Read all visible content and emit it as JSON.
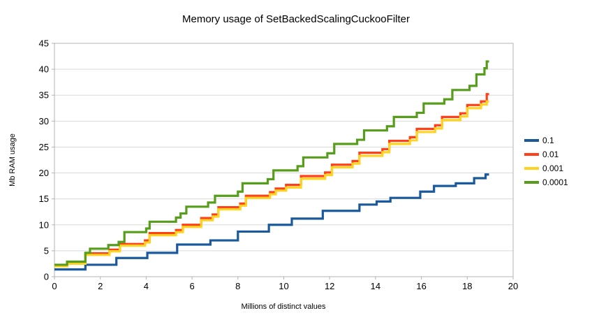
{
  "chart_data": {
    "type": "line",
    "step_lines": true,
    "title": "Memory usage of SetBackedScalingCuckooFilter",
    "xlabel": "Millions of distinct values",
    "ylabel": "Mb RAM usage",
    "xlim": [
      0,
      20
    ],
    "ylim": [
      0,
      45
    ],
    "xticks": [
      0,
      2,
      4,
      6,
      8,
      10,
      12,
      14,
      16,
      18,
      20
    ],
    "yticks": [
      0,
      5,
      10,
      15,
      20,
      25,
      30,
      35,
      40,
      45
    ],
    "grid": "horizontal",
    "legend_position": "right",
    "background_color": "#ffffff",
    "grid_color": "#d9d9d9",
    "axis_color": "#b3b3b3",
    "x_end": 18.95,
    "series": [
      {
        "name": "0.1",
        "color": "#1a5a9c",
        "steps": [
          [
            0,
            1.4
          ],
          [
            1.35,
            2.3
          ],
          [
            2.7,
            3.6
          ],
          [
            4.05,
            4.6
          ],
          [
            5.35,
            6.2
          ],
          [
            6.8,
            7.0
          ],
          [
            8.0,
            8.7
          ],
          [
            9.35,
            10.0
          ],
          [
            10.35,
            11.2
          ],
          [
            11.7,
            12.7
          ],
          [
            13.3,
            13.9
          ],
          [
            14.05,
            14.5
          ],
          [
            14.65,
            15.2
          ],
          [
            15.95,
            16.4
          ],
          [
            16.55,
            17.5
          ],
          [
            17.5,
            18.0
          ],
          [
            18.3,
            19.0
          ],
          [
            18.8,
            19.7
          ]
        ]
      },
      {
        "name": "0.01",
        "color": "#ff4019",
        "steps": [
          [
            0,
            2.2
          ],
          [
            0.55,
            2.7
          ],
          [
            1.35,
            4.5
          ],
          [
            2.4,
            5.2
          ],
          [
            2.85,
            6.3
          ],
          [
            3.95,
            7.0
          ],
          [
            4.15,
            8.4
          ],
          [
            5.3,
            9.0
          ],
          [
            5.6,
            10.0
          ],
          [
            6.4,
            11.3
          ],
          [
            6.9,
            12.0
          ],
          [
            7.15,
            13.4
          ],
          [
            8.1,
            14.1
          ],
          [
            8.35,
            15.6
          ],
          [
            9.4,
            16.3
          ],
          [
            9.65,
            17.0
          ],
          [
            10.1,
            17.7
          ],
          [
            10.75,
            19.4
          ],
          [
            11.8,
            20.1
          ],
          [
            12.1,
            21.6
          ],
          [
            13.0,
            22.3
          ],
          [
            13.3,
            23.9
          ],
          [
            14.3,
            24.6
          ],
          [
            14.6,
            26.2
          ],
          [
            15.5,
            26.9
          ],
          [
            15.8,
            28.5
          ],
          [
            16.6,
            29.2
          ],
          [
            16.9,
            30.8
          ],
          [
            17.7,
            31.5
          ],
          [
            18.0,
            33.1
          ],
          [
            18.6,
            33.8
          ],
          [
            18.85,
            35.2
          ]
        ]
      },
      {
        "name": "0.001",
        "color": "#ffd320",
        "steps": [
          [
            0,
            2.0
          ],
          [
            0.55,
            2.5
          ],
          [
            1.35,
            4.2
          ],
          [
            2.4,
            4.9
          ],
          [
            2.85,
            6.0
          ],
          [
            3.95,
            6.6
          ],
          [
            4.15,
            8.0
          ],
          [
            5.3,
            8.6
          ],
          [
            5.6,
            9.6
          ],
          [
            6.4,
            10.9
          ],
          [
            6.9,
            11.6
          ],
          [
            7.15,
            13.0
          ],
          [
            8.1,
            13.7
          ],
          [
            8.35,
            15.2
          ],
          [
            9.4,
            15.9
          ],
          [
            9.65,
            16.6
          ],
          [
            10.1,
            17.2
          ],
          [
            10.75,
            18.9
          ],
          [
            11.8,
            19.6
          ],
          [
            12.1,
            21.1
          ],
          [
            13.0,
            21.8
          ],
          [
            13.3,
            23.3
          ],
          [
            14.3,
            24.0
          ],
          [
            14.6,
            25.6
          ],
          [
            15.5,
            26.3
          ],
          [
            15.8,
            27.9
          ],
          [
            16.6,
            28.6
          ],
          [
            16.9,
            30.2
          ],
          [
            17.7,
            30.9
          ],
          [
            18.0,
            32.5
          ],
          [
            18.6,
            33.2
          ],
          [
            18.85,
            33.8
          ]
        ]
      },
      {
        "name": "0.0001",
        "color": "#579d1c",
        "steps": [
          [
            0,
            2.3
          ],
          [
            0.55,
            2.9
          ],
          [
            1.35,
            4.6
          ],
          [
            1.55,
            5.4
          ],
          [
            2.35,
            6.1
          ],
          [
            2.8,
            6.7
          ],
          [
            3.05,
            8.6
          ],
          [
            4.0,
            9.3
          ],
          [
            4.15,
            10.6
          ],
          [
            5.3,
            11.4
          ],
          [
            5.5,
            12.2
          ],
          [
            5.75,
            13.5
          ],
          [
            6.7,
            14.3
          ],
          [
            7.0,
            15.6
          ],
          [
            8.0,
            16.4
          ],
          [
            8.2,
            18.0
          ],
          [
            9.3,
            18.8
          ],
          [
            9.55,
            20.5
          ],
          [
            10.6,
            21.3
          ],
          [
            10.85,
            23.0
          ],
          [
            11.9,
            23.8
          ],
          [
            12.2,
            25.6
          ],
          [
            13.2,
            26.4
          ],
          [
            13.5,
            28.2
          ],
          [
            14.5,
            29.0
          ],
          [
            14.8,
            30.8
          ],
          [
            15.8,
            31.6
          ],
          [
            16.1,
            33.4
          ],
          [
            17.0,
            34.2
          ],
          [
            17.35,
            36.0
          ],
          [
            18.1,
            36.8
          ],
          [
            18.4,
            39.0
          ],
          [
            18.75,
            40.2
          ],
          [
            18.85,
            41.5
          ]
        ]
      }
    ]
  }
}
